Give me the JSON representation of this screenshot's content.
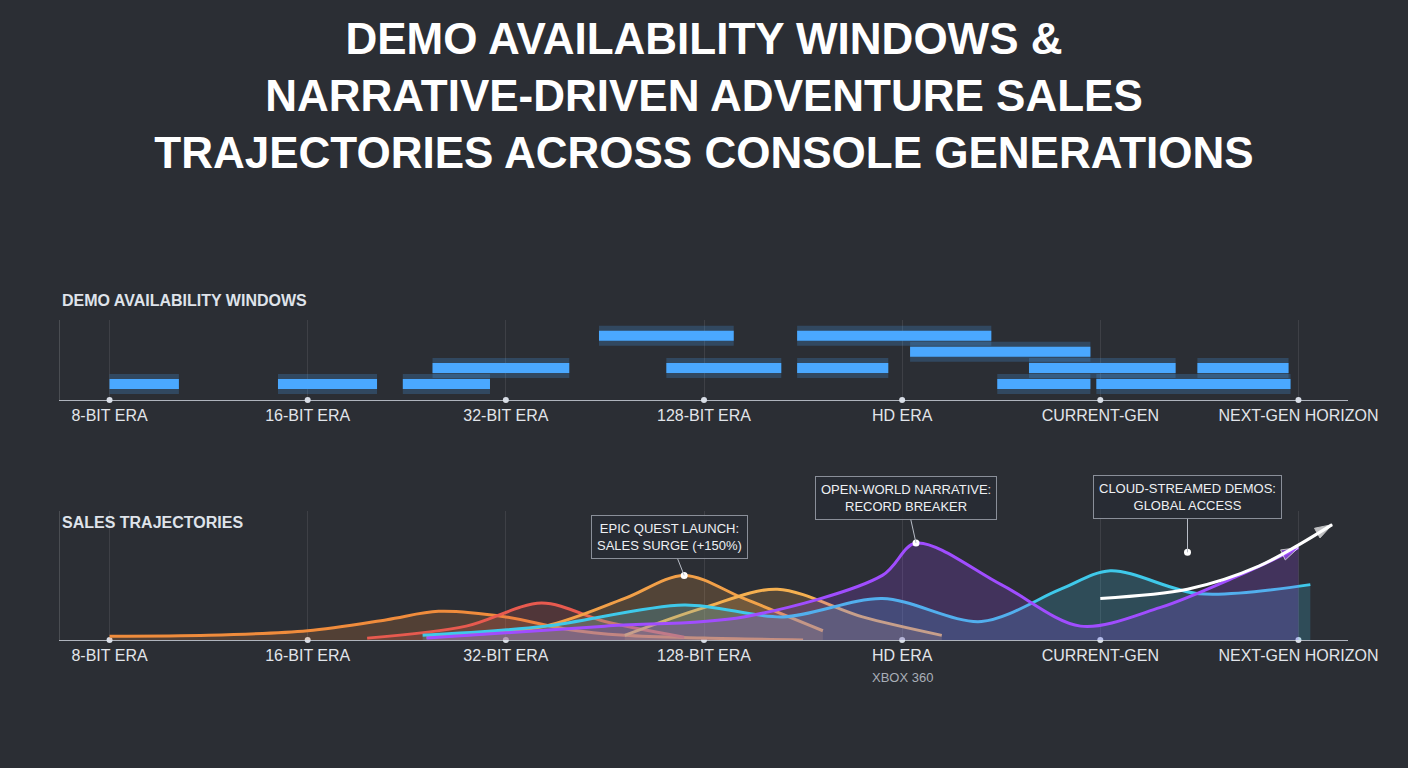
{
  "title": "DEMO AVAILABILITY WINDOWS & NARRATIVE-DRIVEN ADVENTURE SALES TRAJECTORIES ACROSS CONSOLE GENERATIONS",
  "chart_data": [
    {
      "type": "timeline",
      "title": "DEMO AVAILABILITY WINDOWS",
      "color": "#4aa8ff",
      "xlim": [
        -0.25,
        6.25
      ],
      "xticks": [
        {
          "value": 0,
          "label": "8-BIT ERA"
        },
        {
          "value": 1,
          "label": "16-BIT ERA"
        },
        {
          "value": 2,
          "label": "32-BIT ERA"
        },
        {
          "value": 3,
          "label": "128-BIT ERA"
        },
        {
          "value": 4,
          "label": "HD ERA"
        },
        {
          "value": 5,
          "label": "CURRENT-GEN"
        },
        {
          "value": 6,
          "label": "NEXT-GEN HORIZON"
        }
      ],
      "ylim": [
        0,
        5
      ],
      "grid": true,
      "tick_labels": "x",
      "bars": [
        {
          "start": 0,
          "end": 0.35,
          "row": 1
        },
        {
          "start": 0.85,
          "end": 1.35,
          "row": 1
        },
        {
          "start": 1.48,
          "end": 1.92,
          "row": 1
        },
        {
          "start": 1.63,
          "end": 2.32,
          "row": 2
        },
        {
          "start": 2.47,
          "end": 3.15,
          "row": 4
        },
        {
          "start": 2.81,
          "end": 3.39,
          "row": 2
        },
        {
          "start": 3.47,
          "end": 4.45,
          "row": 4
        },
        {
          "start": 3.47,
          "end": 3.93,
          "row": 2
        },
        {
          "start": 4.04,
          "end": 4.95,
          "row": 3
        },
        {
          "start": 4.64,
          "end": 5.38,
          "row": 2
        },
        {
          "start": 4.48,
          "end": 4.95,
          "row": 1
        },
        {
          "start": 4.98,
          "end": 5.96,
          "row": 1
        },
        {
          "start": 5.49,
          "end": 5.95,
          "row": 2
        }
      ]
    },
    {
      "type": "area",
      "title": "SALES TRAJECTORIES",
      "xlim": [
        -0.25,
        6.25
      ],
      "xticks": [
        {
          "value": 0,
          "label": "8-BIT ERA"
        },
        {
          "value": 1,
          "label": "16-BIT ERA"
        },
        {
          "value": 2,
          "label": "32-BIT ERA"
        },
        {
          "value": 3,
          "label": "128-BIT ERA"
        },
        {
          "value": 4,
          "label": "HD ERA"
        },
        {
          "value": 5,
          "label": "CURRENT-GEN"
        },
        {
          "value": 6,
          "label": "NEXT-GEN HORIZON"
        }
      ],
      "tick_notes": [
        {
          "value": 4,
          "label": "XBOX 360"
        }
      ],
      "ylim": [
        0,
        140
      ],
      "grid": true,
      "tick_labels": "x",
      "series": [
        {
          "color": "#f08c3c",
          "x": [
            0,
            0.5,
            1.0,
            1.4,
            1.66,
            2.0,
            2.3,
            2.6,
            3.0,
            3.5
          ],
          "values": [
            4,
            5,
            10,
            22,
            31,
            25,
            12,
            5,
            2,
            0
          ]
        },
        {
          "color": "#e85a4f",
          "x": [
            1.3,
            1.8,
            2.18,
            2.5,
            2.9
          ],
          "values": [
            2,
            15,
            40,
            20,
            3
          ]
        },
        {
          "color": "#f2a048",
          "x": [
            1.6,
            2.2,
            2.6,
            2.9,
            3.2,
            3.6
          ],
          "values": [
            3,
            15,
            45,
            70,
            45,
            10
          ]
        },
        {
          "color": "#f5b050",
          "x": [
            2.6,
            3.0,
            3.37,
            3.8,
            4.2
          ],
          "values": [
            5,
            35,
            55,
            25,
            5
          ]
        },
        {
          "color": "#3fc9ea",
          "x": [
            1.58,
            2.2,
            2.9,
            3.4,
            3.9,
            4.4,
            4.8,
            5.05,
            5.5,
            6.06
          ],
          "values": [
            5,
            15,
            38,
            25,
            45,
            20,
            55,
            75,
            50,
            60
          ]
        },
        {
          "color": "#a04dff",
          "marker": "arrow",
          "x": [
            1.6,
            2.5,
            3.2,
            3.9,
            4.07,
            4.5,
            4.9,
            5.3,
            5.7,
            6.0
          ],
          "values": [
            2,
            15,
            25,
            70,
            105,
            60,
            15,
            35,
            70,
            100
          ]
        },
        {
          "color": "#ffffff",
          "type": "line",
          "marker": "arrow",
          "x": [
            5.0,
            5.44,
            5.8,
            6.17
          ],
          "values": [
            45,
            55,
            80,
            125
          ]
        }
      ],
      "annotations": [
        {
          "text": "EPIC QUEST LAUNCH: SALES SURGE (+150%)",
          "x": 2.9,
          "y": 70
        },
        {
          "text": "OPEN-WORLD NARRATIVE: RECORD BREAKER",
          "x": 4.07,
          "y": 105
        },
        {
          "text": "CLOUD-STREAMED DEMOS: GLOBAL ACCESS",
          "x": 5.44,
          "y": 95
        }
      ]
    }
  ]
}
